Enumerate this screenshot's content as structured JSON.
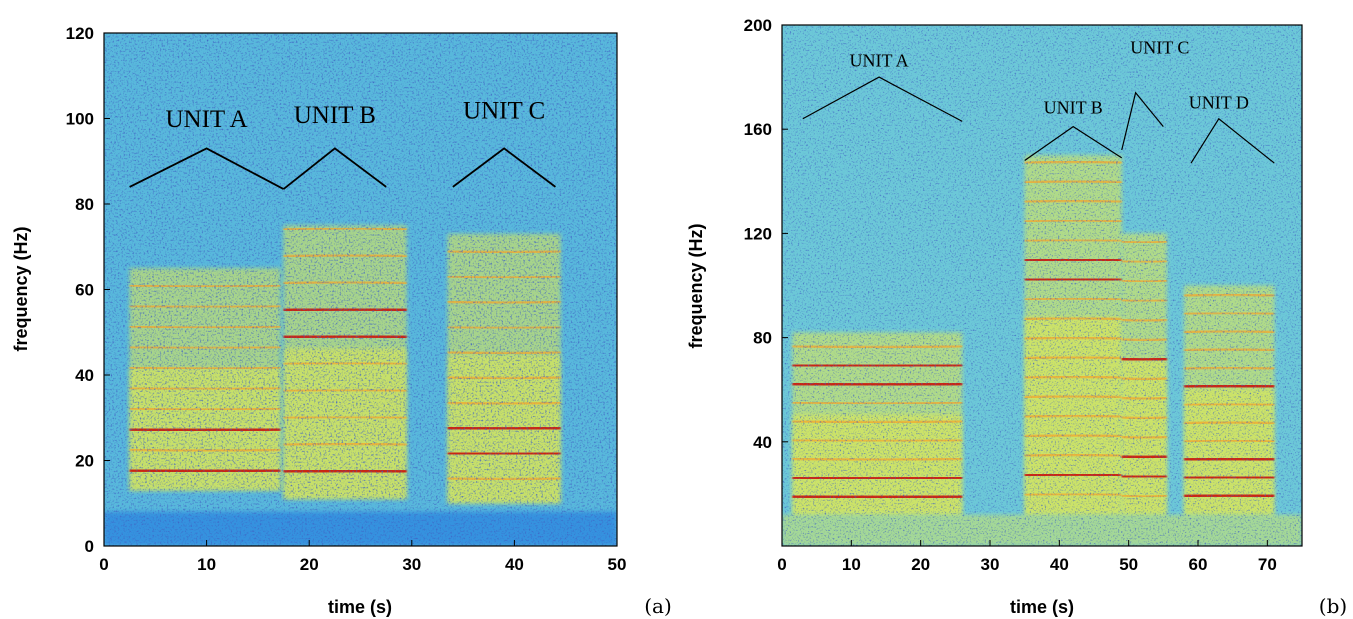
{
  "chart_data": [
    {
      "type": "heatmap",
      "panel_label": "(a)",
      "title": "",
      "xlabel": "time (s)",
      "ylabel": "frequency (Hz)",
      "xlim": [
        0,
        50
      ],
      "ylim": [
        0,
        120
      ],
      "xticks": [
        0,
        10,
        20,
        30,
        40,
        50
      ],
      "yticks": [
        0,
        20,
        40,
        60,
        80,
        100,
        120
      ],
      "colormap": [
        "#0a2ea8",
        "#2a86e0",
        "#5cc8e8",
        "#8fe0a8",
        "#e8ec4a",
        "#f6a62a",
        "#cc1e10"
      ],
      "background_color": "#58b8dc",
      "units": [
        {
          "label": "UNIT A",
          "x_start": 2.5,
          "x_end": 17.2,
          "f_low": 13,
          "f_high": 65,
          "harmonic_spacing": 4.8,
          "strong_freqs": [
            19.5,
            26.5
          ],
          "apex": {
            "x": 10,
            "y": 93
          },
          "label_y": 98
        },
        {
          "label": "UNIT B",
          "x_start": 17.5,
          "x_end": 29.5,
          "f_low": 11,
          "f_high": 75,
          "harmonic_spacing": 6.3,
          "strong_freqs": [
            18.5,
            57,
            51
          ],
          "apex": {
            "x": 22.5,
            "y": 93
          },
          "label_y": 99
        },
        {
          "label": "UNIT C",
          "x_start": 33.5,
          "x_end": 44.5,
          "f_low": 10,
          "f_high": 73,
          "harmonic_spacing": 5.9,
          "strong_freqs": [
            23.5,
            29.5
          ],
          "apex": {
            "x": 39,
            "y": 93
          },
          "label_y": 100
        }
      ],
      "brackets": [
        [
          [
            2.5,
            84
          ],
          [
            10,
            93
          ],
          [
            17.5,
            83.5
          ]
        ],
        [
          [
            17.5,
            83.5
          ],
          [
            22.5,
            93
          ],
          [
            27.5,
            84
          ]
        ],
        [
          [
            34,
            84
          ],
          [
            39,
            93
          ],
          [
            44,
            84
          ]
        ]
      ]
    },
    {
      "type": "heatmap",
      "panel_label": "(b)",
      "title": "",
      "xlabel": "time (s)",
      "ylabel": "frequency (Hz)",
      "xlim": [
        0,
        75
      ],
      "ylim": [
        0,
        200
      ],
      "xticks": [
        0,
        10,
        20,
        30,
        40,
        50,
        60,
        70
      ],
      "yticks": [
        40,
        80,
        120,
        160,
        200
      ],
      "colormap": [
        "#0a2ea8",
        "#2a86e0",
        "#5cc8e8",
        "#8fe0a8",
        "#e8ec4a",
        "#f6a62a",
        "#cc1e10"
      ],
      "background_color": "#6cc8d8",
      "units": [
        {
          "label": "UNIT A",
          "x_start": 1.5,
          "x_end": 26,
          "f_low": 12,
          "f_high": 82,
          "harmonic_spacing": 7.2,
          "strong_freqs": [
            22,
            26,
            62,
            70
          ],
          "apex": {
            "x": 14,
            "y": 180
          },
          "label_y": 184
        },
        {
          "label": "UNIT B",
          "x_start": 35,
          "x_end": 49,
          "f_low": 12,
          "f_high": 150,
          "harmonic_spacing": 7.5,
          "strong_freqs": [
            24,
            30,
            100,
            108
          ],
          "apex": {
            "x": 42,
            "y": 161
          },
          "label_y": 166
        },
        {
          "label": "UNIT C",
          "x_start": 49,
          "x_end": 55.5,
          "f_low": 12,
          "f_high": 120,
          "harmonic_spacing": 7.5,
          "strong_freqs": [
            26,
            34,
            70
          ],
          "apex": {
            "x": 51,
            "y": 174
          },
          "label_y": 189
        },
        {
          "label": "UNIT D",
          "x_start": 58,
          "x_end": 71,
          "f_low": 12,
          "f_high": 100,
          "harmonic_spacing": 7.0,
          "strong_freqs": [
            20,
            26,
            32,
            64
          ],
          "apex": {
            "x": 63,
            "y": 164
          },
          "label_y": 168
        }
      ],
      "brackets": [
        [
          [
            3,
            164
          ],
          [
            14,
            180
          ],
          [
            26,
            163
          ]
        ],
        [
          [
            35,
            148
          ],
          [
            42,
            161
          ],
          [
            49,
            149
          ]
        ],
        [
          [
            49,
            152
          ],
          [
            51,
            174
          ],
          [
            55,
            161
          ]
        ],
        [
          [
            59,
            147
          ],
          [
            63,
            164
          ],
          [
            71,
            147
          ]
        ]
      ]
    }
  ]
}
